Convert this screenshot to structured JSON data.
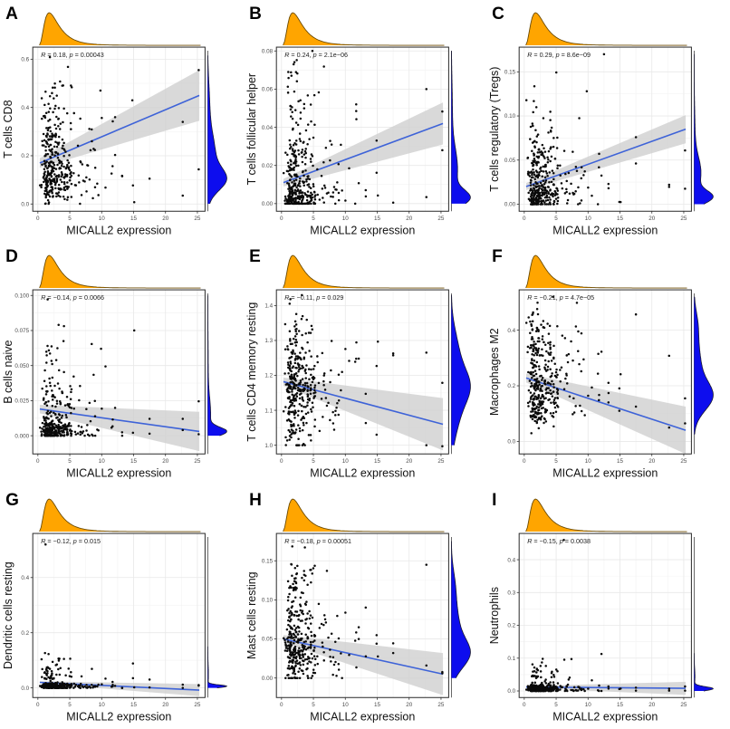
{
  "figure": {
    "background": "#FFFFFF",
    "x_axis": {
      "label": "MICALL2 expression",
      "tick_values": [
        0,
        5,
        10,
        15,
        20,
        25
      ],
      "tick_labels": [
        "0",
        "5",
        "10",
        "15",
        "20",
        "25"
      ],
      "lim": [
        -0.8,
        26.2
      ]
    },
    "x_distribution": {
      "type": "lognormal",
      "mu": 0.956,
      "sigma": 0.62,
      "clip": [
        0.25,
        25.3
      ]
    },
    "n_points_estimate": 370,
    "colors": {
      "top_density_fill": "#FFA500",
      "top_density_stroke": "#6b4a00",
      "right_density_fill": "#0D0DEE",
      "right_density_stroke": "#1a1a2e",
      "trend_line": "#3E63D8",
      "ci_band": "#CFCFCF",
      "points": "#0A0A0A",
      "grid_major": "#E8E8E8",
      "grid_minor": "#F4F4F4",
      "panel_border": "#2A2A2A",
      "tick_text": "#4a4a4a",
      "title_text": "#111111"
    }
  },
  "chart_data": [
    {
      "type": "scatter",
      "panel": "A",
      "ylabel": "T cells CD8",
      "xlabel": "MICALL2 expression",
      "r_value": "0.18",
      "p_value": "0.00043",
      "y_tick_values": [
        0,
        0.2,
        0.4,
        0.6
      ],
      "y_tick_labels": [
        "0.0",
        "0.2",
        "0.4",
        "0.6"
      ],
      "ylim": [
        -0.03,
        0.65
      ],
      "trend": {
        "y_start": 0.17,
        "y_end": 0.45
      },
      "band": {
        "h_start": 0.02,
        "h_end": 0.105
      },
      "y_dist": {
        "modes": [
          {
            "mu": 0.1,
            "s": 0.045,
            "w": 0.45
          },
          {
            "mu": 0.2,
            "s": 0.09,
            "w": 0.45
          },
          {
            "mu": 0.42,
            "s": 0.09,
            "w": 0.1
          }
        ],
        "clip": [
          0.001,
          0.615
        ]
      },
      "outliers": [
        [
          25.2,
          0.555
        ],
        [
          22.7,
          0.34
        ],
        [
          14.8,
          0.43
        ],
        [
          12.1,
          0.36
        ],
        [
          9.8,
          0.47
        ]
      ],
      "seed": 101
    },
    {
      "type": "scatter",
      "panel": "B",
      "ylabel": "T cells follicular helper",
      "xlabel": "MICALL2 expression",
      "r_value": "0.24",
      "p_value": "2.1e−06",
      "y_tick_values": [
        0,
        0.02,
        0.04,
        0.06,
        0.08
      ],
      "y_tick_labels": [
        "0.00",
        "0.02",
        "0.04",
        "0.06",
        "0.08"
      ],
      "ylim": [
        -0.004,
        0.082
      ],
      "trend": {
        "y_start": 0.011,
        "y_end": 0.042
      },
      "band": {
        "h_start": 0.002,
        "h_end": 0.011
      },
      "y_dist": {
        "modes": [
          {
            "mu": 0.003,
            "s": 0.004,
            "w": 0.45
          },
          {
            "mu": 0.018,
            "s": 0.011,
            "w": 0.45
          },
          {
            "mu": 0.05,
            "s": 0.015,
            "w": 0.1
          }
        ],
        "clip": [
          0,
          0.08
        ]
      },
      "outliers": [
        [
          22.7,
          0.06
        ],
        [
          25.2,
          0.028
        ],
        [
          14.9,
          0.033
        ],
        [
          11.7,
          0.052
        ]
      ],
      "seed": 102
    },
    {
      "type": "scatter",
      "panel": "C",
      "ylabel": "T cells regulatory (Tregs)",
      "xlabel": "MICALL2 expression",
      "r_value": "0.29",
      "p_value": "8.6e−09",
      "y_tick_values": [
        0,
        0.05,
        0.1,
        0.15
      ],
      "y_tick_labels": [
        "0.00",
        "0.05",
        "0.10",
        "0.15"
      ],
      "ylim": [
        -0.008,
        0.178
      ],
      "trend": {
        "y_start": 0.02,
        "y_end": 0.085
      },
      "band": {
        "h_start": 0.004,
        "h_end": 0.016
      },
      "y_dist": {
        "modes": [
          {
            "mu": 0.008,
            "s": 0.007,
            "w": 0.45
          },
          {
            "mu": 0.035,
            "s": 0.018,
            "w": 0.45
          },
          {
            "mu": 0.08,
            "s": 0.03,
            "w": 0.1
          }
        ],
        "clip": [
          0,
          0.17
        ]
      },
      "outliers": [
        [
          12.5,
          0.17
        ],
        [
          9.8,
          0.128
        ],
        [
          17.5,
          0.076
        ],
        [
          25.2,
          0.061
        ],
        [
          22.7,
          0.022
        ]
      ],
      "seed": 103
    },
    {
      "type": "scatter",
      "panel": "D",
      "ylabel": "B cells naive",
      "xlabel": "MICALL2 expression",
      "r_value": "−0.14",
      "p_value": "0.0066",
      "y_tick_values": [
        0,
        0.025,
        0.05,
        0.075,
        0.1
      ],
      "y_tick_labels": [
        "0.000",
        "0.025",
        "0.050",
        "0.075",
        "0.100"
      ],
      "ylim": [
        -0.013,
        0.104
      ],
      "trend": {
        "y_start": 0.019,
        "y_end": 0.003
      },
      "band": {
        "h_start": 0.003,
        "h_end": 0.014
      },
      "y_dist": {
        "modes": [
          {
            "mu": 0.003,
            "s": 0.003,
            "w": 0.55
          },
          {
            "mu": 0.015,
            "s": 0.012,
            "w": 0.35
          },
          {
            "mu": 0.05,
            "s": 0.02,
            "w": 0.1
          }
        ],
        "clip": [
          0,
          0.1
        ]
      },
      "outliers": [
        [
          17.5,
          0.012
        ],
        [
          22.7,
          0.012
        ],
        [
          25.2,
          0.001
        ],
        [
          9.9,
          0.062
        ]
      ],
      "seed": 104
    },
    {
      "type": "scatter",
      "panel": "E",
      "ylabel": "T cells CD4 memory resting",
      "xlabel": "MICALL2 expression",
      "r_value": "−0.11",
      "p_value": "0.029",
      "y_tick_values": [
        1,
        1.1,
        1.2,
        1.3,
        1.4
      ],
      "y_tick_labels": [
        "1.0",
        "1.1",
        "1.2",
        "1.3",
        "1.4"
      ],
      "ylim": [
        0.975,
        1.445
      ],
      "trend": {
        "y_start": 1.182,
        "y_end": 1.06
      },
      "band": {
        "h_start": 0.012,
        "h_end": 0.075
      },
      "y_dist": {
        "modes": [
          {
            "mu": 1.17,
            "s": 0.05,
            "w": 0.5
          },
          {
            "mu": 1.08,
            "s": 0.06,
            "w": 0.25
          },
          {
            "mu": 1.27,
            "s": 0.06,
            "w": 0.25
          }
        ],
        "clip": [
          1.0,
          1.43
        ]
      },
      "outliers": [
        [
          17.5,
          1.263
        ],
        [
          22.7,
          1.265
        ],
        [
          25.2,
          0.997
        ],
        [
          14.9,
          1.03
        ]
      ],
      "seed": 105
    },
    {
      "type": "scatter",
      "panel": "F",
      "ylabel": "Macrophages M2",
      "xlabel": "MICALL2 expression",
      "r_value": "−0.21",
      "p_value": "4.7e−05",
      "y_tick_values": [
        0,
        0.2,
        0.4
      ],
      "y_tick_labels": [
        "0.0",
        "0.2",
        "0.4"
      ],
      "ylim": [
        -0.045,
        0.545
      ],
      "trend": {
        "y_start": 0.228,
        "y_end": 0.04
      },
      "band": {
        "h_start": 0.016,
        "h_end": 0.085
      },
      "y_dist": {
        "modes": [
          {
            "mu": 0.16,
            "s": 0.05,
            "w": 0.55
          },
          {
            "mu": 0.27,
            "s": 0.08,
            "w": 0.35
          },
          {
            "mu": 0.42,
            "s": 0.05,
            "w": 0.1
          }
        ],
        "clip": [
          0.025,
          0.52
        ]
      },
      "outliers": [
        [
          11.6,
          0.315
        ],
        [
          17.5,
          0.125
        ],
        [
          14.9,
          0.11
        ],
        [
          22.7,
          0.05
        ],
        [
          25.2,
          0.065
        ],
        [
          13.2,
          0.14
        ]
      ],
      "seed": 106
    },
    {
      "type": "scatter",
      "panel": "G",
      "ylabel": "Dendritic cells resting",
      "xlabel": "MICALL2 expression",
      "r_value": "−0.12",
      "p_value": "0.015",
      "y_tick_values": [
        0,
        0.2,
        0.4
      ],
      "y_tick_labels": [
        "0.0",
        "0.2",
        "0.4"
      ],
      "ylim": [
        -0.035,
        0.56
      ],
      "trend": {
        "y_start": 0.02,
        "y_end": -0.008
      },
      "band": {
        "h_start": 0.004,
        "h_end": 0.022
      },
      "y_dist": {
        "modes": [
          {
            "mu": 0.006,
            "s": 0.005,
            "w": 0.8
          },
          {
            "mu": 0.05,
            "s": 0.035,
            "w": 0.2
          }
        ],
        "clip": [
          0,
          0.15
        ]
      },
      "outliers": [
        [
          1.2,
          0.52
        ],
        [
          14.9,
          0.035
        ],
        [
          17.5,
          0.03
        ],
        [
          22.7,
          0.012
        ],
        [
          25.2,
          0.01
        ],
        [
          11.7,
          0.022
        ]
      ],
      "seed": 107
    },
    {
      "type": "scatter",
      "panel": "H",
      "ylabel": "Mast cells resting",
      "xlabel": "MICALL2 expression",
      "r_value": "−0.18",
      "p_value": "0.00051",
      "y_tick_values": [
        0,
        0.05,
        0.1,
        0.15
      ],
      "y_tick_labels": [
        "0.00",
        "0.05",
        "0.10",
        "0.15"
      ],
      "ylim": [
        -0.025,
        0.185
      ],
      "trend": {
        "y_start": 0.05,
        "y_end": 0.005
      },
      "band": {
        "h_start": 0.005,
        "h_end": 0.027
      },
      "y_dist": {
        "modes": [
          {
            "mu": 0.03,
            "s": 0.018,
            "w": 0.5
          },
          {
            "mu": 0.065,
            "s": 0.03,
            "w": 0.4
          },
          {
            "mu": 0.12,
            "s": 0.02,
            "w": 0.1
          }
        ],
        "clip": [
          0,
          0.175
        ]
      },
      "outliers": [
        [
          17.5,
          0.032
        ],
        [
          22.7,
          0.016
        ],
        [
          25.2,
          0.006
        ],
        [
          14.9,
          0.044
        ],
        [
          12.1,
          0.065
        ]
      ],
      "seed": 108
    },
    {
      "type": "scatter",
      "panel": "I",
      "ylabel": "Neutrophils",
      "xlabel": "MICALL2 expression",
      "r_value": "−0.15",
      "p_value": "0.0038",
      "y_tick_values": [
        0,
        0.1,
        0.2,
        0.3,
        0.4
      ],
      "y_tick_labels": [
        "0.0",
        "0.1",
        "0.2",
        "0.3",
        "0.4"
      ],
      "ylim": [
        -0.02,
        0.48
      ],
      "trend": {
        "y_start": 0.012,
        "y_end": 0.008
      },
      "band": {
        "h_start": 0.003,
        "h_end": 0.02
      },
      "y_dist": {
        "modes": [
          {
            "mu": 0.007,
            "s": 0.006,
            "w": 0.85
          },
          {
            "mu": 0.045,
            "s": 0.025,
            "w": 0.15
          }
        ],
        "clip": [
          0,
          0.115
        ]
      },
      "outliers": [
        [
          6.2,
          0.46
        ],
        [
          12.1,
          0.113
        ],
        [
          7.4,
          0.097
        ],
        [
          2.9,
          0.098
        ],
        [
          25.2,
          0.001
        ],
        [
          22.7,
          0.001
        ],
        [
          17.5,
          0.001
        ]
      ],
      "seed": 109
    }
  ]
}
